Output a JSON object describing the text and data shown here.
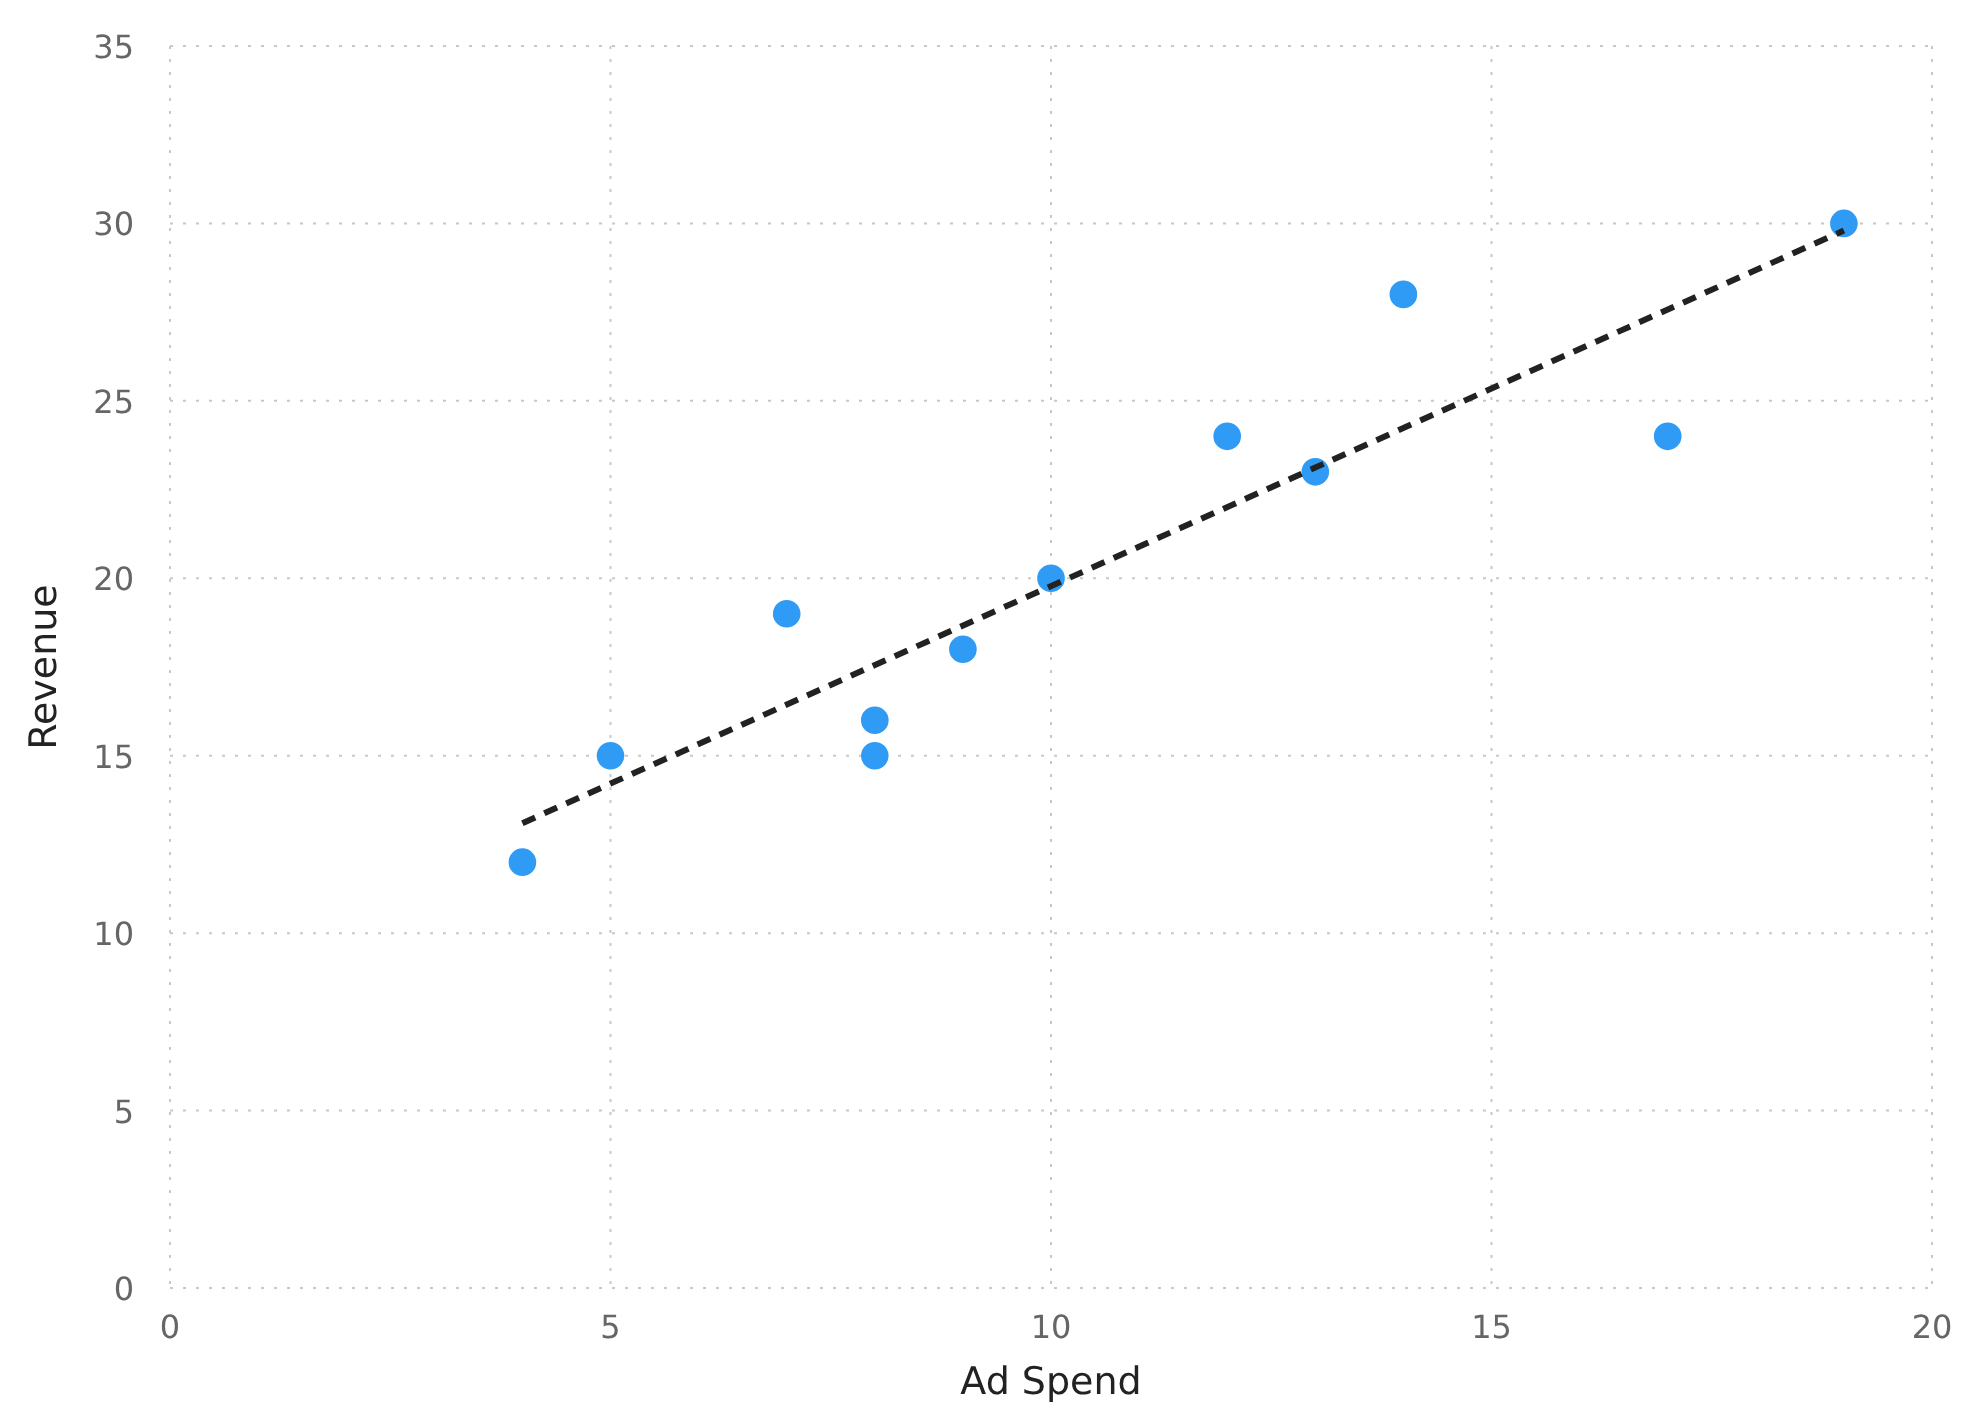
{
  "chart_data": {
    "type": "scatter",
    "xlabel": "Ad Spend",
    "ylabel": "Revenue",
    "xlim": [
      0,
      20
    ],
    "xticks": [
      0,
      5,
      10,
      15,
      20
    ],
    "ylim": [
      0,
      35
    ],
    "yticks": [
      0,
      5,
      10,
      15,
      20,
      25,
      30,
      35
    ],
    "grid": true,
    "series": [
      {
        "color": "#2f9bf5",
        "marker": "circle",
        "x": [
          4,
          5,
          7,
          8,
          8,
          9,
          10,
          12,
          13,
          14,
          17,
          19
        ],
        "values": [
          12,
          15,
          19,
          16,
          15,
          18,
          20,
          24,
          23,
          28,
          24,
          30
        ]
      },
      {
        "type": "line",
        "color": "#222222",
        "marker": "none",
        "line_style": "dashed",
        "x": [
          4,
          19
        ],
        "values": [
          13.1,
          29.8
        ]
      }
    ]
  }
}
